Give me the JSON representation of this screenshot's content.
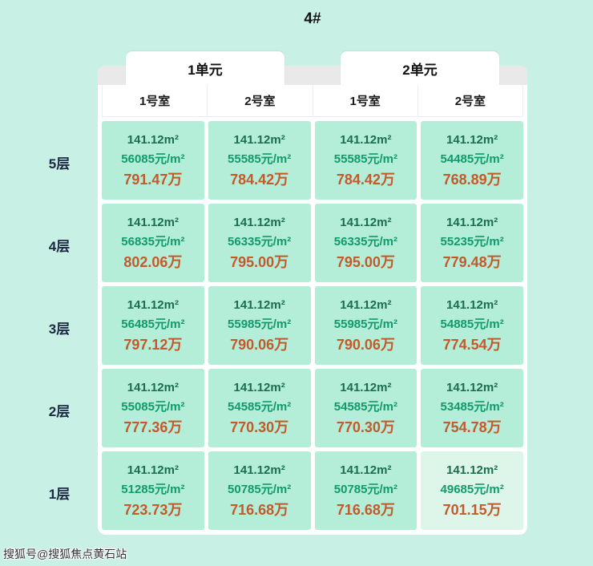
{
  "page": {
    "watermark": "搜狐号@搜狐焦点黄石站"
  },
  "colors": {
    "background": "#c8f0e5",
    "cell_background": "#b4edd8",
    "cell_selected_background": "#def5ea",
    "area_text": "#1a6e4e",
    "unit_price_text": "#119a6d",
    "total_price_text": "#c25a2b",
    "floor_label_text": "#1c2743",
    "tab_strip": "#e9e9e9"
  },
  "chart_data": {
    "type": "table",
    "title": "4#",
    "column_groups": [
      "1单元",
      "2单元"
    ],
    "columns": [
      "1号室",
      "2号室",
      "1号室",
      "2号室"
    ],
    "row_labels": [
      "5层",
      "4层",
      "3层",
      "2层",
      "1层"
    ],
    "highlighted_cell": {
      "row": "1层",
      "column_index": 3
    },
    "rows": [
      {
        "label": "5层",
        "cells": [
          {
            "area": "141.12m²",
            "price": "56085元/m²",
            "total": "791.47万"
          },
          {
            "area": "141.12m²",
            "price": "55585元/m²",
            "total": "784.42万"
          },
          {
            "area": "141.12m²",
            "price": "55585元/m²",
            "total": "784.42万"
          },
          {
            "area": "141.12m²",
            "price": "54485元/m²",
            "total": "768.89万"
          }
        ]
      },
      {
        "label": "4层",
        "cells": [
          {
            "area": "141.12m²",
            "price": "56835元/m²",
            "total": "802.06万"
          },
          {
            "area": "141.12m²",
            "price": "56335元/m²",
            "total": "795.00万"
          },
          {
            "area": "141.12m²",
            "price": "56335元/m²",
            "total": "795.00万"
          },
          {
            "area": "141.12m²",
            "price": "55235元/m²",
            "total": "779.48万"
          }
        ]
      },
      {
        "label": "3层",
        "cells": [
          {
            "area": "141.12m²",
            "price": "56485元/m²",
            "total": "797.12万"
          },
          {
            "area": "141.12m²",
            "price": "55985元/m²",
            "total": "790.06万"
          },
          {
            "area": "141.12m²",
            "price": "55985元/m²",
            "total": "790.06万"
          },
          {
            "area": "141.12m²",
            "price": "54885元/m²",
            "total": "774.54万"
          }
        ]
      },
      {
        "label": "2层",
        "cells": [
          {
            "area": "141.12m²",
            "price": "55085元/m²",
            "total": "777.36万"
          },
          {
            "area": "141.12m²",
            "price": "54585元/m²",
            "total": "770.30万"
          },
          {
            "area": "141.12m²",
            "price": "54585元/m²",
            "total": "770.30万"
          },
          {
            "area": "141.12m²",
            "price": "53485元/m²",
            "total": "754.78万"
          }
        ]
      },
      {
        "label": "1层",
        "cells": [
          {
            "area": "141.12m²",
            "price": "51285元/m²",
            "total": "723.73万"
          },
          {
            "area": "141.12m²",
            "price": "50785元/m²",
            "total": "716.68万"
          },
          {
            "area": "141.12m²",
            "price": "50785元/m²",
            "total": "716.68万"
          },
          {
            "area": "141.12m²",
            "price": "49685元/m²",
            "total": "701.15万"
          }
        ]
      }
    ]
  }
}
